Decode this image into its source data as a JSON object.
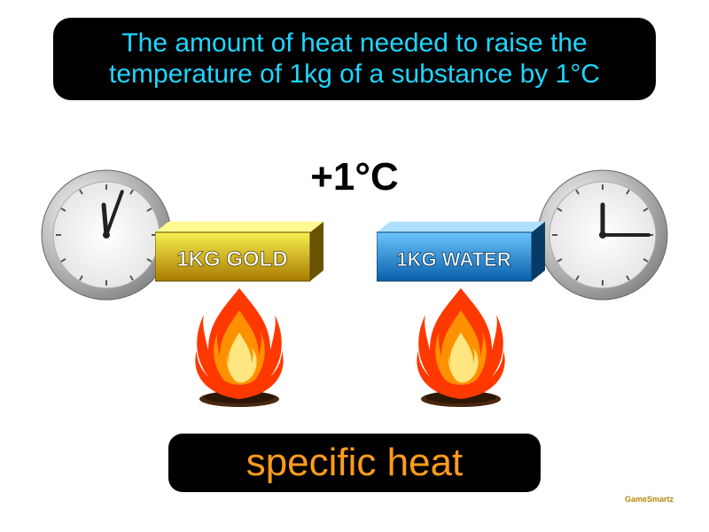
{
  "definition": {
    "text": "The amount of heat needed to raise the temperature of 1kg of a substance by 1°C",
    "color": "#1ed6ff",
    "background": "#000000",
    "fontsize": 30,
    "border_radius": 20
  },
  "delta_temp": {
    "text": "+1°C",
    "color": "#000000",
    "fontsize": 44
  },
  "block_gold": {
    "label": "1KG GOLD",
    "fill_top": "#f8f050",
    "fill_bottom": "#a87a00",
    "side_color": "#6b5200",
    "top_face_color": "#fffb90",
    "text_color": "#ffffff",
    "text_outline": "#5a4a00",
    "fontsize": 24
  },
  "block_water": {
    "label": "1KG WATER",
    "fill_top": "#6ac5ff",
    "fill_bottom": "#0a5fa8",
    "side_color": "#083a66",
    "top_face_color": "#aee0ff",
    "text_color": "#ffffff",
    "text_outline": "#083a66",
    "fontsize": 22
  },
  "clock_left": {
    "rim_outer": "#999999",
    "rim_inner": "#e8e8e8",
    "face": "#f5f5f5",
    "hand_color": "#222222",
    "minute_angle": 20,
    "hour_angle": 355,
    "minute_len": 52,
    "hour_len": 34
  },
  "clock_right": {
    "rim_outer": "#999999",
    "rim_inner": "#e8e8e8",
    "face": "#f5f5f5",
    "hand_color": "#222222",
    "minute_angle": 90,
    "hour_angle": 0,
    "minute_len": 52,
    "hour_len": 34
  },
  "flame": {
    "outer_color": "#ff3800",
    "mid_color": "#ff9100",
    "inner_color": "#ffe680",
    "log_color": "#4a2810"
  },
  "term": {
    "text": "specific heat",
    "color": "#ff9c1a",
    "background": "#000000",
    "fontsize": 44,
    "border_radius": 16
  },
  "watermark": {
    "text": "GameSmartz",
    "color": "#b8860b"
  }
}
